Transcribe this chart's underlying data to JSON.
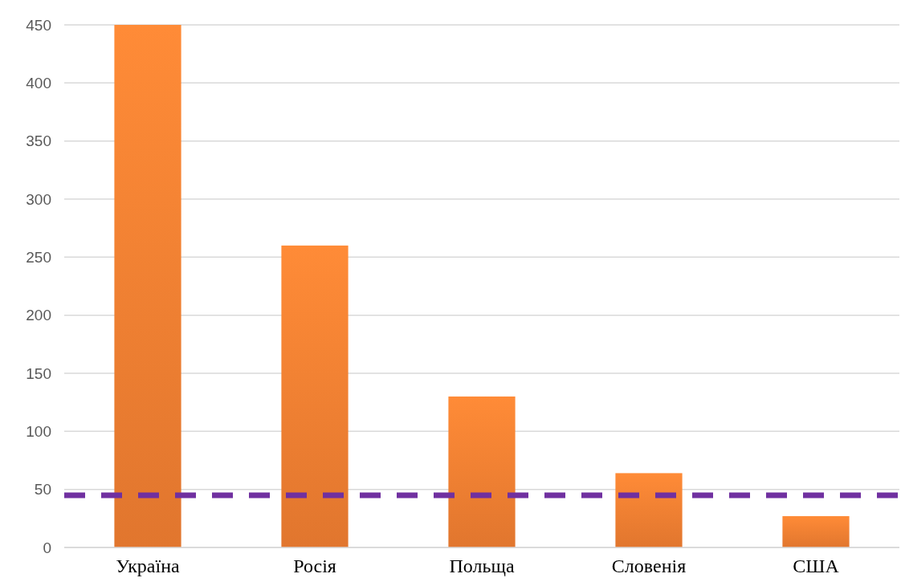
{
  "chart_data": {
    "type": "bar",
    "categories": [
      "Україна",
      "Росія",
      "Польща",
      "Словенія",
      "США"
    ],
    "values": [
      450,
      260,
      130,
      64,
      27
    ],
    "color": "#ed7d31",
    "ylim": [
      0,
      450
    ],
    "yticks": [
      0,
      50,
      100,
      150,
      200,
      250,
      300,
      350,
      400,
      450
    ],
    "grid": "y",
    "ref_lines": [
      {
        "axis": "y",
        "value": 45,
        "color": "#7030a0",
        "line_style": "dashed"
      }
    ]
  }
}
